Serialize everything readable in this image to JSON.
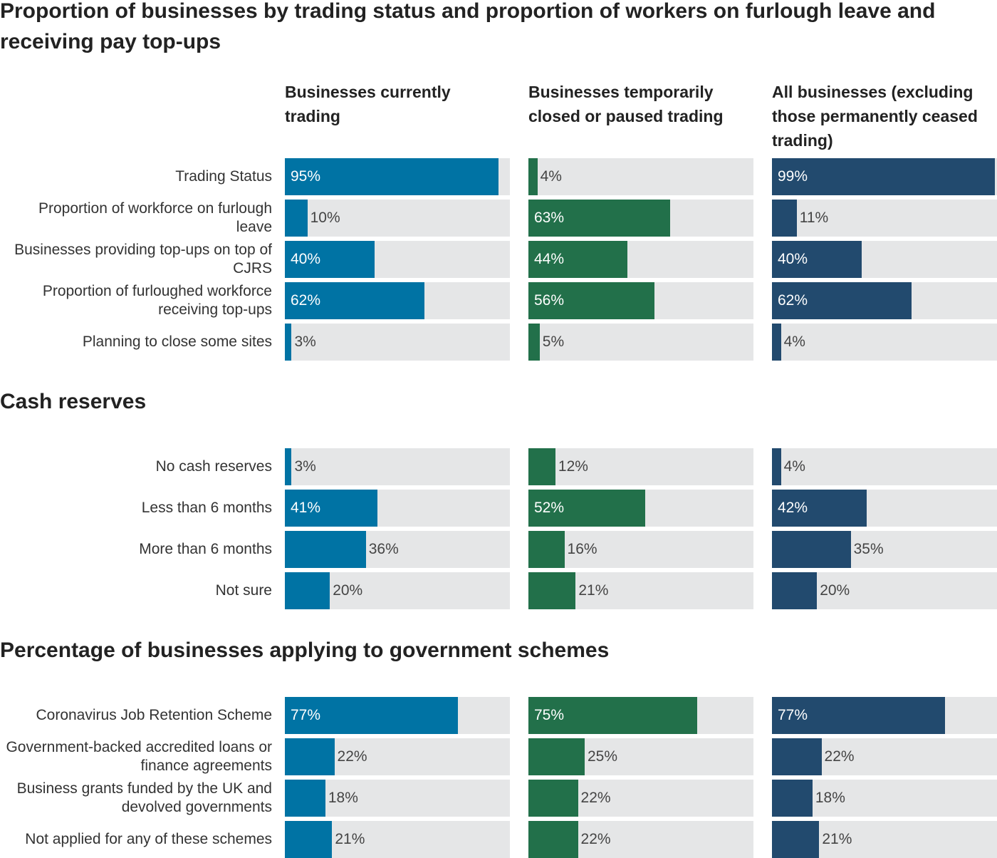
{
  "chart_data": [
    {
      "type": "bar",
      "title": "Proportion of businesses by trading status and proportion of workers on furlough leave and receiving pay top-ups",
      "categories": [
        "Trading Status",
        "Proportion of workforce on furlough leave",
        "Businesses providing top-ups on top of CJRS",
        "Proportion of furloughed workforce receiving top-ups",
        "Planning to close some sites"
      ],
      "xlim": [
        0,
        100
      ],
      "series": [
        {
          "name": "Businesses currently trading",
          "color": "#0073a4",
          "values": [
            95,
            10,
            40,
            62,
            3
          ],
          "value_labels": [
            "95%",
            "10%",
            "40%",
            "62%",
            "3%"
          ]
        },
        {
          "name": "Businesses temporarily closed or paused trading",
          "color": "#22704a",
          "values": [
            4,
            63,
            44,
            56,
            5
          ],
          "value_labels": [
            "4%",
            "63%",
            "44%",
            "56%",
            "5%"
          ]
        },
        {
          "name": "All businesses (excluding those permanently ceased trading)",
          "color": "#224a6e",
          "values": [
            99,
            11,
            40,
            62,
            4
          ],
          "value_labels": [
            "99%",
            "11%",
            "40%",
            "62%",
            "4%"
          ]
        }
      ]
    },
    {
      "type": "bar",
      "title": "Cash reserves",
      "categories": [
        "No cash reserves",
        "Less than 6 months",
        "More than 6 months",
        "Not sure"
      ],
      "xlim": [
        0,
        100
      ],
      "series": [
        {
          "color": "#0073a4",
          "values": [
            3,
            41,
            36,
            20
          ],
          "value_labels": [
            "3%",
            "41%",
            "36%",
            "20%"
          ]
        },
        {
          "color": "#22704a",
          "values": [
            12,
            52,
            16,
            21
          ],
          "value_labels": [
            "12%",
            "52%",
            "16%",
            "21%"
          ]
        },
        {
          "color": "#224a6e",
          "values": [
            4,
            42,
            35,
            20
          ],
          "value_labels": [
            "4%",
            "42%",
            "35%",
            "20%"
          ]
        }
      ]
    },
    {
      "type": "bar",
      "title": "Percentage of businesses applying to government schemes",
      "categories": [
        "Coronavirus Job Retention Scheme",
        "Government-backed accredited loans or finance agreements",
        "Business grants funded by the UK and devolved governments",
        "Not applied for any of these schemes"
      ],
      "xlim": [
        0,
        100
      ],
      "series": [
        {
          "color": "#0073a4",
          "values": [
            77,
            22,
            18,
            21
          ],
          "value_labels": [
            "77%",
            "22%",
            "18%",
            "21%"
          ]
        },
        {
          "color": "#22704a",
          "values": [
            75,
            25,
            22,
            22
          ],
          "value_labels": [
            "75%",
            "25%",
            "22%",
            "22%"
          ]
        },
        {
          "color": "#224a6e",
          "values": [
            77,
            22,
            18,
            21
          ],
          "value_labels": [
            "77%",
            "22%",
            "18%",
            "21%"
          ]
        }
      ]
    }
  ]
}
